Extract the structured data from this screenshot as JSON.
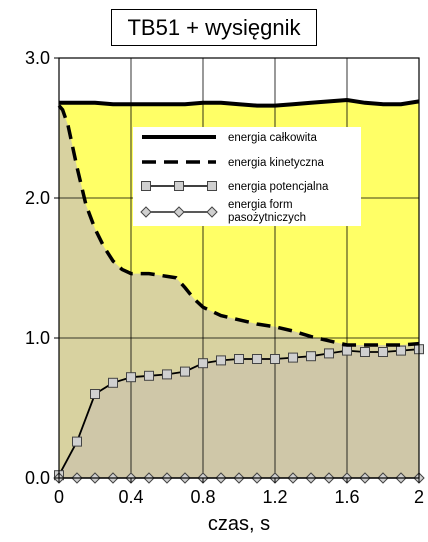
{
  "chart_data": {
    "type": "area",
    "title": "TB51 + wysięgnik",
    "xlabel": "czas, s",
    "ylabel": "",
    "xlim": [
      0,
      2
    ],
    "ylim": [
      0,
      3
    ],
    "x_ticks": [
      "0",
      "0.4",
      "0.8",
      "1.2",
      "1.6",
      "2"
    ],
    "y_ticks": [
      "0.0",
      "1.0",
      "2.0",
      "3.0"
    ],
    "grid": true,
    "legend_position": "top-right",
    "colors": {
      "total_fill": "#ffff66",
      "kinetic_fill": "#d8d2a0",
      "potential_fill": "#cfc7a8",
      "marker_fill": "#d0d0d0"
    },
    "series": [
      {
        "name": "energia całkowita",
        "style": "thick-solid",
        "x": [
          0,
          0.1,
          0.2,
          0.3,
          0.4,
          0.5,
          0.6,
          0.7,
          0.8,
          0.9,
          1.0,
          1.1,
          1.2,
          1.3,
          1.4,
          1.5,
          1.6,
          1.7,
          1.8,
          1.9,
          2.0
        ],
        "y": [
          2.68,
          2.68,
          2.68,
          2.67,
          2.67,
          2.67,
          2.67,
          2.67,
          2.68,
          2.68,
          2.67,
          2.66,
          2.66,
          2.67,
          2.68,
          2.69,
          2.7,
          2.68,
          2.67,
          2.67,
          2.69
        ]
      },
      {
        "name": "energia kinetyczna",
        "style": "thick-dashed",
        "x": [
          0,
          0.02,
          0.05,
          0.1,
          0.15,
          0.2,
          0.25,
          0.3,
          0.35,
          0.4,
          0.45,
          0.5,
          0.55,
          0.6,
          0.65,
          0.7,
          0.75,
          0.8,
          0.9,
          1.0,
          1.1,
          1.2,
          1.3,
          1.4,
          1.5,
          1.6,
          1.7,
          1.8,
          1.9,
          2.0
        ],
        "y": [
          2.66,
          2.63,
          2.52,
          2.22,
          1.95,
          1.78,
          1.65,
          1.55,
          1.49,
          1.46,
          1.46,
          1.46,
          1.45,
          1.44,
          1.43,
          1.36,
          1.28,
          1.22,
          1.16,
          1.13,
          1.1,
          1.08,
          1.05,
          1.01,
          0.98,
          0.95,
          0.95,
          0.95,
          0.95,
          0.96
        ]
      },
      {
        "name": "energia potencjalna",
        "style": "line-square-markers",
        "x": [
          0,
          0.1,
          0.2,
          0.3,
          0.4,
          0.5,
          0.6,
          0.7,
          0.8,
          0.9,
          1.0,
          1.1,
          1.2,
          1.3,
          1.4,
          1.5,
          1.6,
          1.7,
          1.8,
          1.9,
          2.0
        ],
        "y": [
          0.02,
          0.26,
          0.6,
          0.68,
          0.72,
          0.73,
          0.74,
          0.76,
          0.82,
          0.84,
          0.85,
          0.85,
          0.85,
          0.86,
          0.87,
          0.89,
          0.91,
          0.9,
          0.9,
          0.91,
          0.92
        ]
      },
      {
        "name": "energia form pasożytniczych",
        "style": "line-diamond-markers",
        "x": [
          0,
          0.1,
          0.2,
          0.3,
          0.4,
          0.5,
          0.6,
          0.7,
          0.8,
          0.9,
          1.0,
          1.1,
          1.2,
          1.3,
          1.4,
          1.5,
          1.6,
          1.7,
          1.8,
          1.9,
          2.0
        ],
        "y": [
          0.0,
          0.0,
          0.0,
          0.0,
          0.0,
          0.0,
          0.0,
          0.0,
          0.0,
          0.0,
          0.0,
          0.0,
          0.0,
          0.0,
          0.0,
          0.0,
          0.0,
          0.0,
          0.0,
          0.0,
          0.0
        ]
      }
    ],
    "legend": [
      {
        "label": "energia całkowita",
        "icon": "thick-line"
      },
      {
        "label": "energia kinetyczna",
        "icon": "dashed-line"
      },
      {
        "label": "energia potencjalna",
        "icon": "square-marker-line"
      },
      {
        "label": "energia form pasożytniczych",
        "icon": "diamond-marker-line"
      }
    ]
  }
}
